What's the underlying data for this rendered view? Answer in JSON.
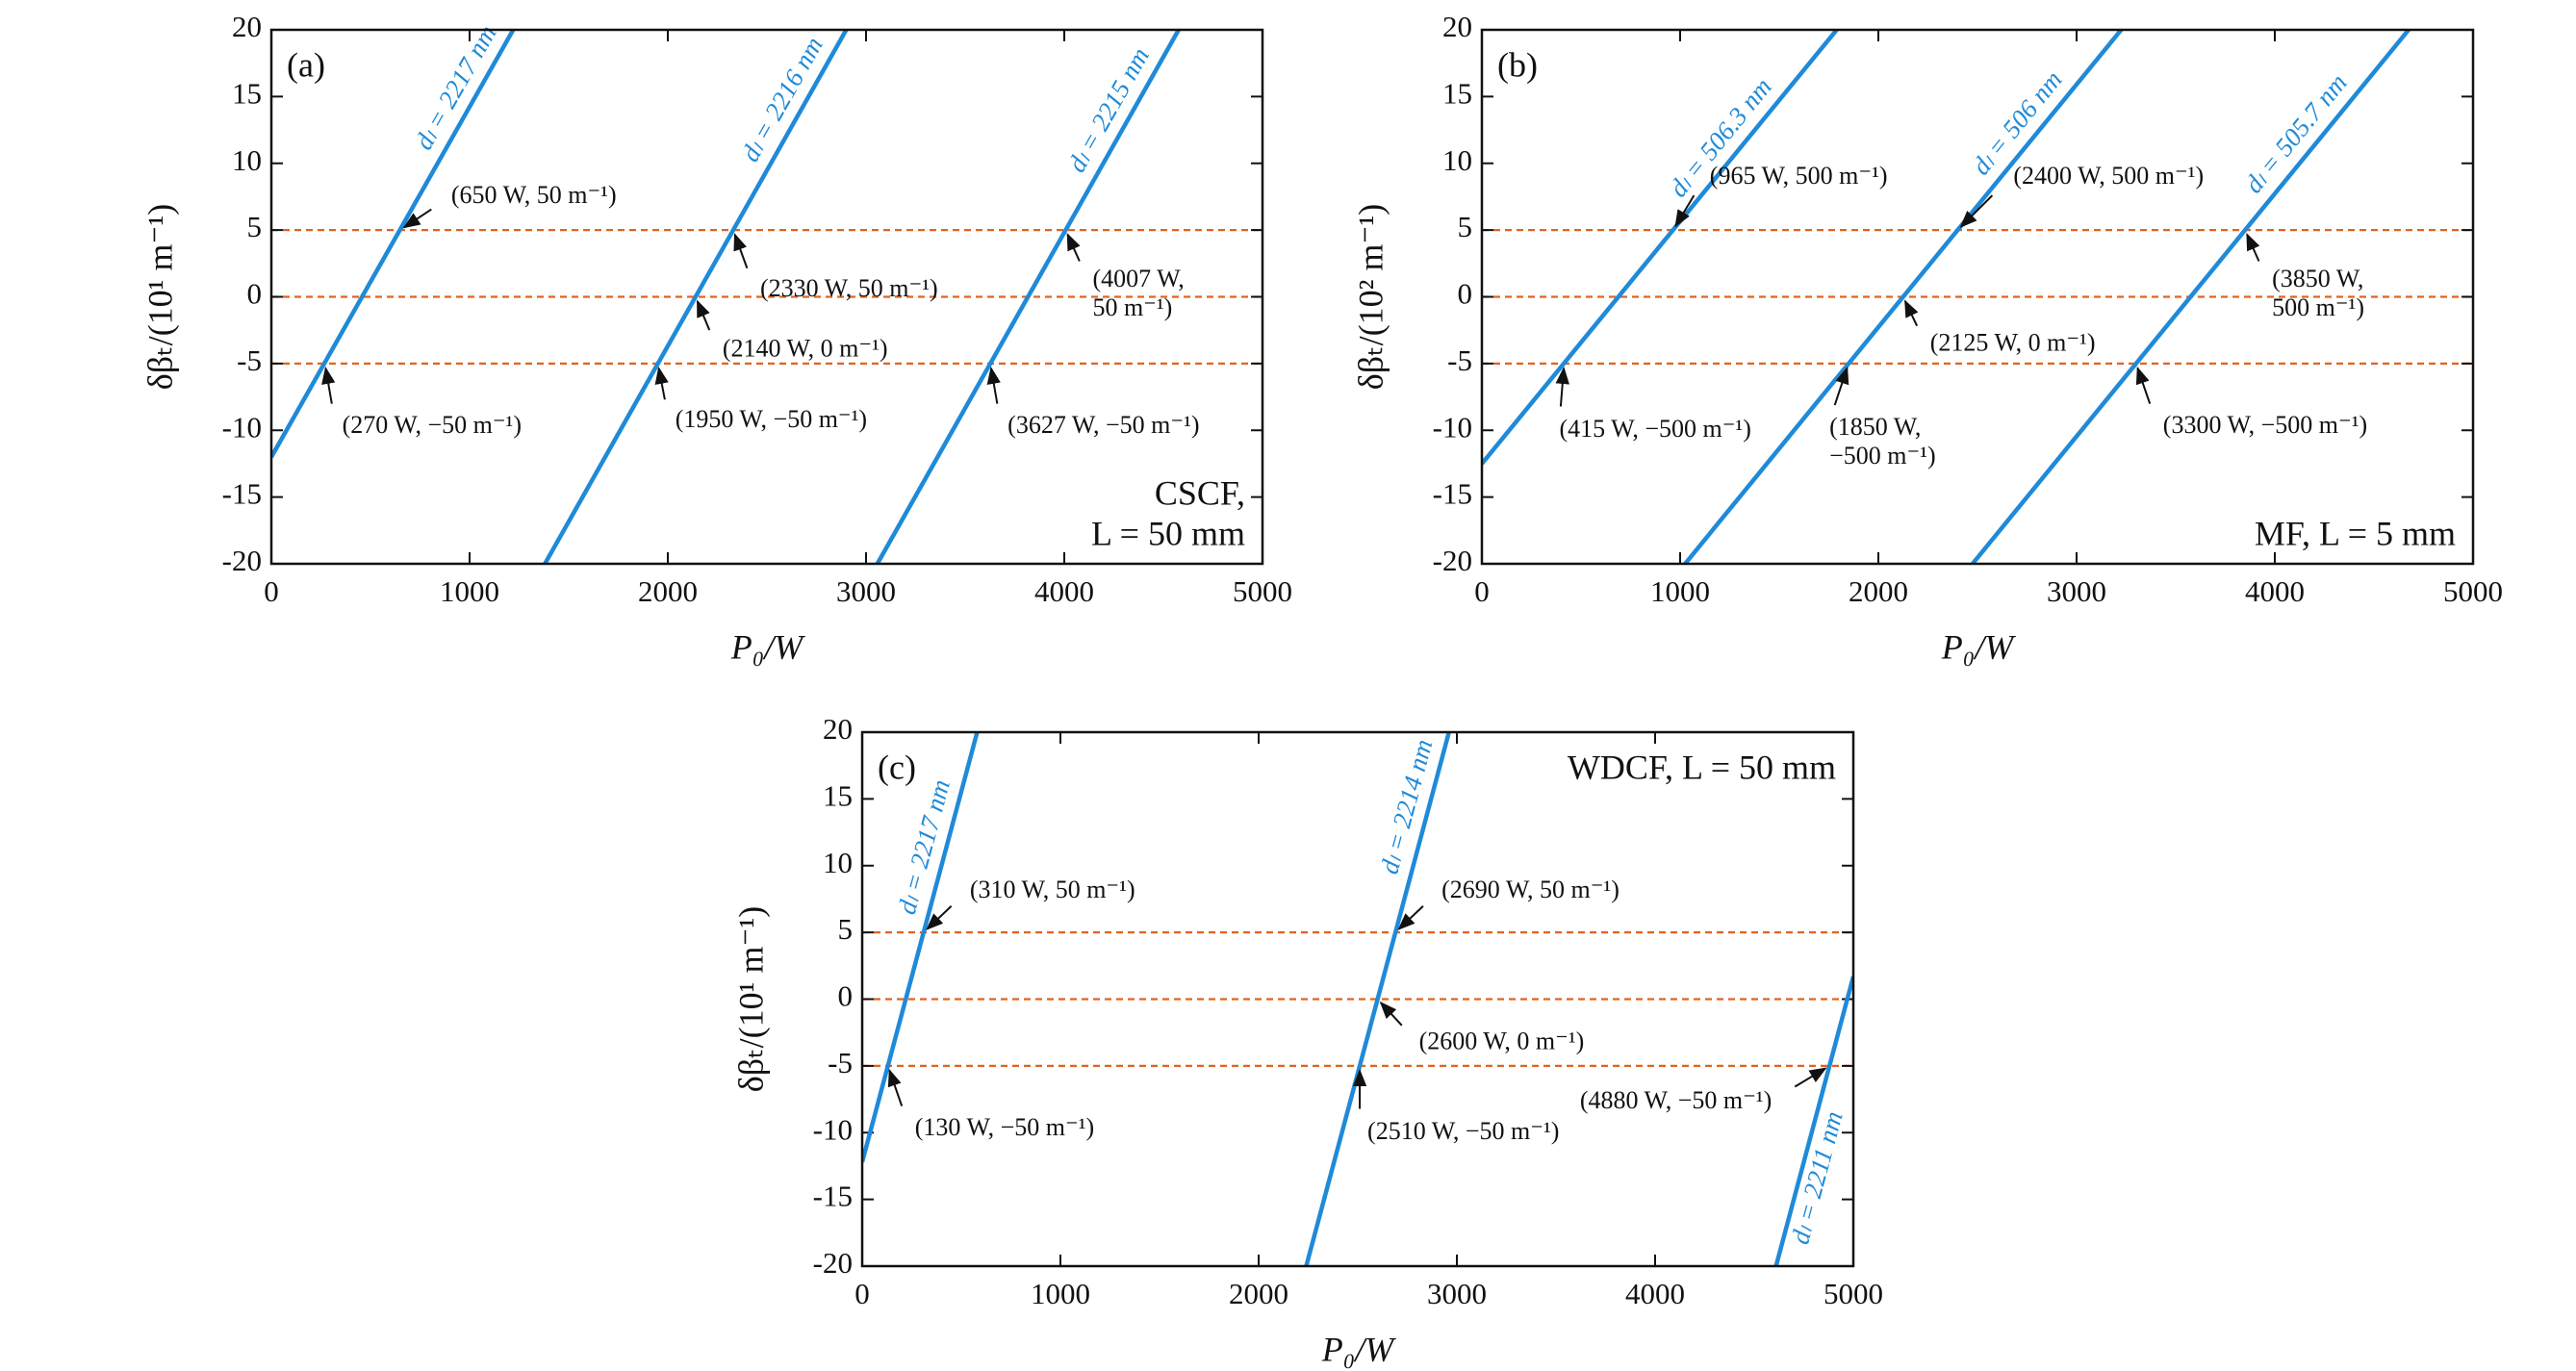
{
  "chart_data": [
    {
      "type": "line",
      "panel_label": "(a)",
      "note": [
        "CSCF,",
        "L = 50 mm"
      ],
      "note_position": "lower right",
      "xlabel": "P₀/W",
      "ylabel": "δβₜ/(10¹ m⁻¹)",
      "xlim": [
        0,
        5000
      ],
      "ylim": [
        -20,
        20
      ],
      "xticks": [
        0,
        1000,
        2000,
        3000,
        4000,
        5000
      ],
      "yticks": [
        -20,
        -15,
        -10,
        -5,
        0,
        5,
        10,
        15,
        20
      ],
      "reference_lines": {
        "color": "#e0641e",
        "values": [
          5,
          0,
          -5
        ]
      },
      "series": [
        {
          "name": "dₗ = 2217 nm",
          "color": "#1f8ad8",
          "x": [
            0,
            1220
          ],
          "values": [
            -12,
            20
          ]
        },
        {
          "name": "dₗ = 2216 nm",
          "color": "#1f8ad8",
          "x": [
            1380,
            2900
          ],
          "values": [
            -20,
            20
          ]
        },
        {
          "name": "dₗ = 2215 nm",
          "color": "#1f8ad8",
          "x": [
            3057,
            4577
          ],
          "values": [
            -20,
            20
          ]
        }
      ],
      "annotations": [
        {
          "text": [
            "(650 W, 50 m⁻¹)"
          ],
          "x": 650,
          "y": 5
        },
        {
          "text": [
            "(2330 W, 50 m⁻¹)"
          ],
          "x": 2330,
          "y": 5
        },
        {
          "text": [
            "(4007 W,",
            "50 m⁻¹)"
          ],
          "x": 4007,
          "y": 5
        },
        {
          "text": [
            "(2140 W, 0 m⁻¹)"
          ],
          "x": 2140,
          "y": 0
        },
        {
          "text": [
            "(270 W, −50 m⁻¹)"
          ],
          "x": 270,
          "y": -5
        },
        {
          "text": [
            "(1950 W, −50 m⁻¹)"
          ],
          "x": 1950,
          "y": -5
        },
        {
          "text": [
            "(3627 W, −50 m⁻¹)"
          ],
          "x": 3627,
          "y": -5
        }
      ]
    },
    {
      "type": "line",
      "panel_label": "(b)",
      "note": [
        "MF, L = 5 mm"
      ],
      "note_position": "lower right",
      "xlabel": "P₀/W",
      "ylabel": "δβₜ/(10² m⁻¹)",
      "xlim": [
        0,
        5000
      ],
      "ylim": [
        -20,
        20
      ],
      "xticks": [
        0,
        1000,
        2000,
        3000,
        4000,
        5000
      ],
      "yticks": [
        -20,
        -15,
        -10,
        -5,
        0,
        5,
        10,
        15,
        20
      ],
      "reference_lines": {
        "color": "#e0641e",
        "values": [
          5,
          0,
          -5
        ]
      },
      "series": [
        {
          "name": "dₗ = 506.3 nm",
          "color": "#1f8ad8",
          "x": [
            0,
            1790
          ],
          "values": [
            -12.5,
            20
          ]
        },
        {
          "name": "dₗ = 506 nm",
          "color": "#1f8ad8",
          "x": [
            1025,
            3225
          ],
          "values": [
            -20,
            20
          ]
        },
        {
          "name": "dₗ = 505.7 nm",
          "color": "#1f8ad8",
          "x": [
            2475,
            4675
          ],
          "values": [
            -20,
            20
          ]
        }
      ],
      "annotations": [
        {
          "text": [
            "(965 W, 500 m⁻¹)"
          ],
          "x": 965,
          "y": 5
        },
        {
          "text": [
            "(2400 W, 500 m⁻¹)"
          ],
          "x": 2400,
          "y": 5
        },
        {
          "text": [
            "(3850 W,",
            "500 m⁻¹)"
          ],
          "x": 3850,
          "y": 5
        },
        {
          "text": [
            "(2125 W, 0 m⁻¹)"
          ],
          "x": 2125,
          "y": 0
        },
        {
          "text": [
            "(415 W, −500 m⁻¹)"
          ],
          "x": 415,
          "y": -5
        },
        {
          "text": [
            "(1850 W,",
            "−500 m⁻¹)"
          ],
          "x": 1850,
          "y": -5
        },
        {
          "text": [
            "(3300 W, −500 m⁻¹)"
          ],
          "x": 3300,
          "y": -5
        }
      ]
    },
    {
      "type": "line",
      "panel_label": "(c)",
      "note": [
        "WDCF, L = 50 mm"
      ],
      "note_position": "upper right",
      "xlabel": "P₀/W",
      "ylabel": "δβₜ/(10¹ m⁻¹)",
      "xlim": [
        0,
        5000
      ],
      "ylim": [
        -20,
        20
      ],
      "xticks": [
        0,
        1000,
        2000,
        3000,
        4000,
        5000
      ],
      "yticks": [
        -20,
        -15,
        -10,
        -5,
        0,
        5,
        10,
        15,
        20
      ],
      "reference_lines": {
        "color": "#e0641e",
        "values": [
          5,
          0,
          -5
        ]
      },
      "series": [
        {
          "name": "dₗ = 2217 nm",
          "color": "#1f8ad8",
          "x": [
            0,
            580
          ],
          "values": [
            -12.2,
            20
          ]
        },
        {
          "name": "dₗ = 2214 nm",
          "color": "#1f8ad8",
          "x": [
            2240,
            2960
          ],
          "values": [
            -20,
            20
          ]
        },
        {
          "name": "dₗ = 2211 nm",
          "color": "#1f8ad8",
          "x": [
            4610,
            5000
          ],
          "values": [
            -20,
            1.7
          ]
        }
      ],
      "annotations": [
        {
          "text": [
            "(310 W, 50 m⁻¹)"
          ],
          "x": 310,
          "y": 5
        },
        {
          "text": [
            "(2690 W, 50 m⁻¹)"
          ],
          "x": 2690,
          "y": 5
        },
        {
          "text": [
            "(2600 W, 0 m⁻¹)"
          ],
          "x": 2600,
          "y": 0
        },
        {
          "text": [
            "(130 W, −50 m⁻¹)"
          ],
          "x": 130,
          "y": -5
        },
        {
          "text": [
            "(2510 W, −50 m⁻¹)"
          ],
          "x": 2510,
          "y": -5
        },
        {
          "text": [
            "(4880 W, −50 m⁻¹)"
          ],
          "x": 4880,
          "y": -5
        }
      ]
    }
  ]
}
